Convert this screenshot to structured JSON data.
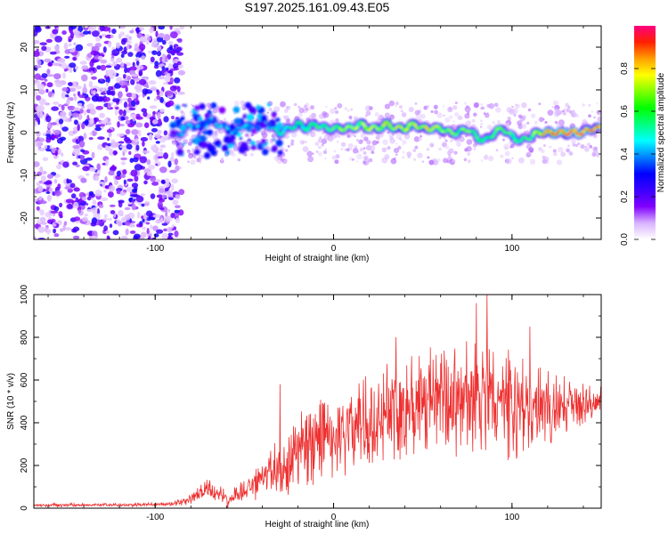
{
  "title": "S197.2025.161.09.43.E05",
  "chart_data": [
    {
      "type": "heatmap",
      "xlabel": "Height of straight line (km)",
      "ylabel": "Frequency (Hz)",
      "xlim": [
        -168,
        150
      ],
      "ylim": [
        -25,
        25
      ],
      "x_ticks": [
        -100,
        0,
        100
      ],
      "y_ticks": [
        -20,
        -10,
        0,
        10,
        20
      ],
      "colorbar": {
        "label": "Normalized spectral amplitude",
        "range": [
          0,
          1
        ],
        "ticks": [
          "0.0",
          "0.2",
          "0.4",
          "0.6",
          "0.8"
        ],
        "colors": [
          "#ffffff",
          "#d9b3ff",
          "#8000ff",
          "#3a00ff",
          "#0000ff",
          "#0080ff",
          "#00ffff",
          "#00ff80",
          "#00ff00",
          "#80ff00",
          "#ffff00",
          "#ffa000",
          "#ff2000",
          "#ff0080"
        ]
      },
      "ridge": {
        "x": [
          -90,
          -85,
          -80,
          -75,
          -70,
          -65,
          -60,
          -55,
          -50,
          -45,
          -40,
          -35,
          -30,
          -25,
          -20,
          -15,
          -10,
          -5,
          0,
          5,
          10,
          15,
          20,
          25,
          30,
          35,
          40,
          45,
          50,
          55,
          60,
          65,
          70,
          75,
          80,
          85,
          90,
          95,
          100,
          105,
          110,
          115,
          120,
          125,
          130,
          135,
          140,
          145,
          150
        ],
        "freq": [
          -1,
          0,
          2,
          1,
          3,
          2,
          1,
          0,
          2,
          1,
          3,
          1,
          0,
          1,
          2,
          1,
          2,
          1,
          1,
          1,
          1,
          2,
          1,
          1,
          2,
          1,
          1,
          2,
          1,
          1,
          1,
          0,
          0,
          1,
          -1,
          -2,
          0,
          1,
          -1,
          -2,
          -1,
          0,
          0,
          0,
          0,
          0,
          0,
          1,
          1
        ],
        "amplitude": [
          0.35,
          0.4,
          0.45,
          0.45,
          0.5,
          0.45,
          0.45,
          0.4,
          0.45,
          0.4,
          0.45,
          0.45,
          0.5,
          0.5,
          0.55,
          0.55,
          0.6,
          0.6,
          0.6,
          0.65,
          0.7,
          0.7,
          0.75,
          0.7,
          0.75,
          0.75,
          0.7,
          0.75,
          0.7,
          0.75,
          0.7,
          0.65,
          0.6,
          0.7,
          0.6,
          0.55,
          0.6,
          0.65,
          0.6,
          0.55,
          0.6,
          0.75,
          0.85,
          0.9,
          0.9,
          0.95,
          0.9,
          0.85,
          0.85
        ]
      },
      "noise": {
        "x_range": [
          -168,
          -85
        ],
        "amplitude_range": [
          0.05,
          0.3
        ]
      }
    },
    {
      "type": "line",
      "xlabel": "Height of straight line (km)",
      "ylabel": "SNR (10 * v/v)",
      "xlim": [
        -168,
        150
      ],
      "ylim": [
        0,
        1000
      ],
      "x_ticks": [
        -100,
        0,
        100
      ],
      "y_ticks": [
        0,
        200,
        400,
        600,
        800,
        1000
      ],
      "color": "#ee3030",
      "envelope": {
        "x": [
          -168,
          -140,
          -110,
          -90,
          -80,
          -70,
          -60,
          -50,
          -40,
          -30,
          -20,
          -10,
          0,
          10,
          20,
          30,
          40,
          50,
          60,
          70,
          80,
          90,
          100,
          110,
          120,
          130,
          140,
          150
        ],
        "mean": [
          15,
          15,
          15,
          20,
          40,
          90,
          40,
          80,
          130,
          200,
          260,
          300,
          350,
          380,
          420,
          460,
          490,
          480,
          500,
          510,
          520,
          500,
          480,
          460,
          470,
          480,
          490,
          510
        ],
        "spread": [
          8,
          8,
          8,
          10,
          25,
          60,
          40,
          60,
          90,
          150,
          190,
          200,
          210,
          220,
          230,
          240,
          260,
          260,
          270,
          280,
          290,
          270,
          260,
          230,
          180,
          140,
          100,
          60
        ]
      },
      "peaks": [
        [
          -30,
          580
        ],
        [
          35,
          800
        ],
        [
          80,
          960
        ],
        [
          86,
          1000
        ],
        [
          110,
          850
        ]
      ]
    }
  ]
}
